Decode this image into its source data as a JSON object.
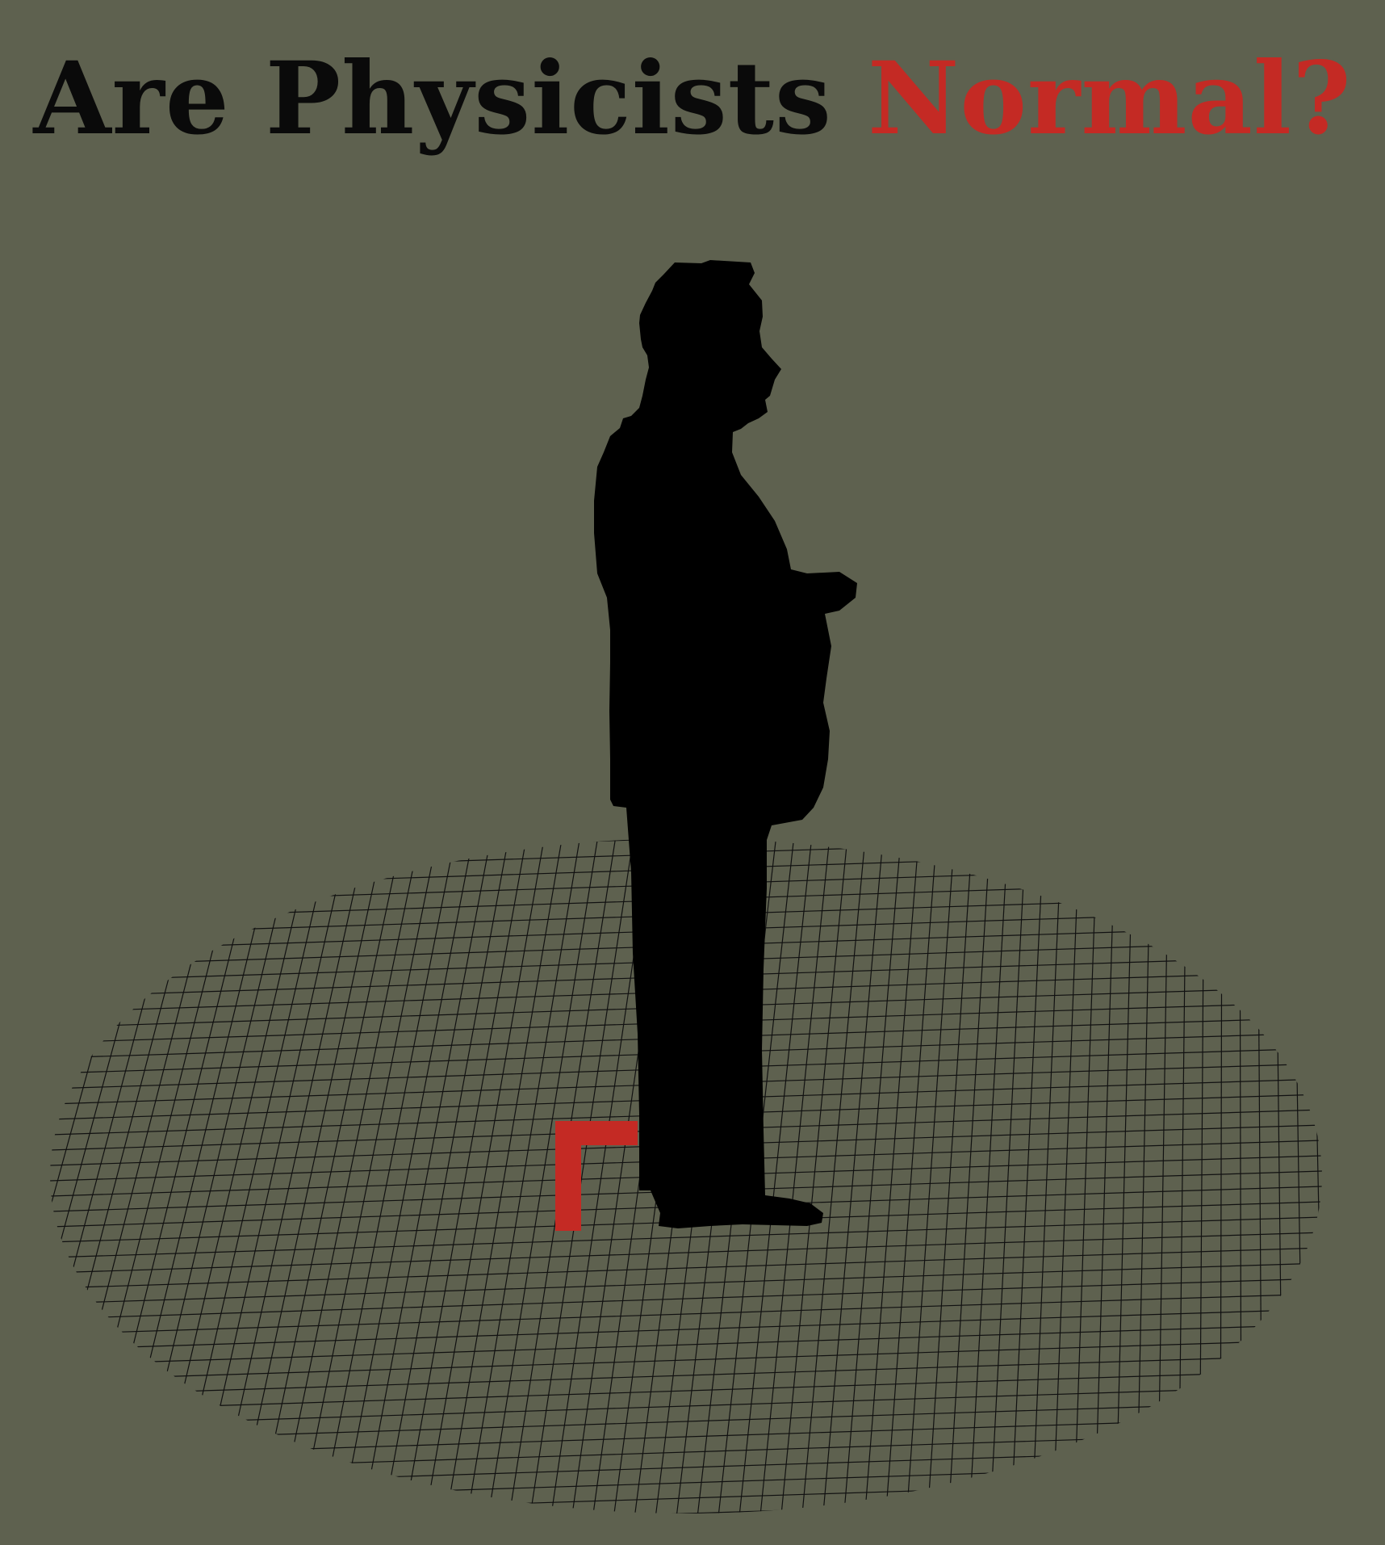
{
  "title": {
    "part1": "Are Physicists ",
    "part2": "Normal?"
  },
  "colors": {
    "background": "#5e614f",
    "title_text": "#0a0a0a",
    "accent": "#c42a24",
    "silhouette": "#000000",
    "grid_lines": "#111111"
  },
  "illustration": {
    "figure": "man-silhouette-standing-profile",
    "floor": "elliptical-grid-floor",
    "marker": "red-corner-bracket"
  }
}
